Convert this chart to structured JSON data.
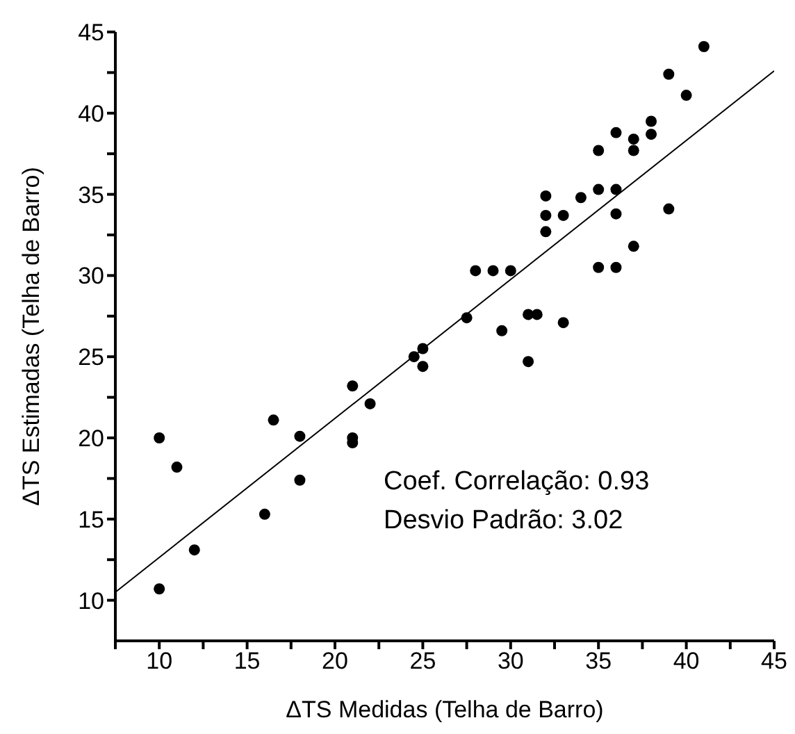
{
  "chart_data": {
    "type": "scatter",
    "xlabel": "ΔTS Medidas (Telha de Barro)",
    "ylabel": "ΔTS Estimadas (Telha de Barro)",
    "xlim": [
      7.5,
      45
    ],
    "ylim": [
      7.5,
      45
    ],
    "xticks": [
      {
        "value": 7.5,
        "label": null
      },
      10,
      {
        "value": 12.5,
        "label": null
      },
      15,
      {
        "value": 17.5,
        "label": null
      },
      20,
      {
        "value": 22.5,
        "label": null
      },
      25,
      {
        "value": 27.5,
        "label": null
      },
      30,
      {
        "value": 32.5,
        "label": null
      },
      35,
      {
        "value": 37.5,
        "label": null
      },
      40,
      {
        "value": 42.5,
        "label": null
      },
      45
    ],
    "yticks": [
      10,
      {
        "value": 12.5,
        "label": null
      },
      15,
      {
        "value": 17.5,
        "label": null
      },
      20,
      {
        "value": 22.5,
        "label": null
      },
      25,
      {
        "value": 27.5,
        "label": null
      },
      30,
      {
        "value": 32.5,
        "label": null
      },
      35,
      {
        "value": 37.5,
        "label": null
      },
      40,
      {
        "value": 42.5,
        "label": null
      },
      45
    ],
    "grid": false,
    "legend": false,
    "annotations": [
      "Coef. Correlação: 0.93",
      "Desvio Padrão: 3.02"
    ],
    "series": [
      {
        "color": "#000000",
        "marker": "circle",
        "x": [
          10,
          11,
          10,
          12,
          16,
          16.5,
          18,
          18,
          21,
          21,
          21,
          22,
          24.5,
          25,
          25,
          31,
          41,
          39,
          40,
          38,
          38,
          36,
          37,
          37,
          35,
          32,
          34,
          35,
          36,
          32,
          33,
          36,
          32,
          39,
          37,
          35,
          36,
          28,
          29,
          30,
          27.5,
          31,
          31.5,
          33,
          29.5
        ],
        "values": [
          20,
          18.2,
          10.7,
          13.1,
          15.3,
          21.1,
          20.1,
          17.4,
          23.2,
          20,
          19.7,
          22.1,
          25,
          25.5,
          24.4,
          24.7,
          44.1,
          42.4,
          41.1,
          39.5,
          38.7,
          38.8,
          38.4,
          37.7,
          37.7,
          34.9,
          34.8,
          35.3,
          35.3,
          33.7,
          33.7,
          33.8,
          32.7,
          34.1,
          31.8,
          30.5,
          30.5,
          30.3,
          30.3,
          30.3,
          27.4,
          27.6,
          27.6,
          27.1,
          26.6
        ]
      },
      {
        "type": "line",
        "color": "#000000",
        "marker": "none",
        "x": [
          7.5,
          45
        ],
        "values": [
          10.5,
          42.6
        ]
      }
    ]
  }
}
